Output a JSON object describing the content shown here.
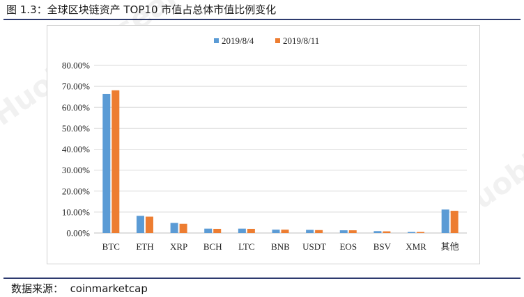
{
  "figure": {
    "title": "图 1.3：全球区块链资产 TOP10 市值占总体市值比例变化",
    "source_label": "数据来源：",
    "source_value": "coinmarketcap",
    "watermark": "Huobi Research"
  },
  "chart_data": {
    "type": "bar",
    "title": "",
    "xlabel": "",
    "ylabel": "",
    "categories": [
      "BTC",
      "ETH",
      "XRP",
      "BCH",
      "LTC",
      "BNB",
      "USDT",
      "EOS",
      "BSV",
      "XMR",
      "其他"
    ],
    "series": [
      {
        "name": "2019/8/4",
        "color": "#5b9bd5",
        "values": [
          66.4,
          8.2,
          4.8,
          2.1,
          2.1,
          1.6,
          1.5,
          1.3,
          0.9,
          0.5,
          11.2
        ]
      },
      {
        "name": "2019/8/11",
        "color": "#ed7d31",
        "values": [
          68.1,
          7.8,
          4.4,
          2.0,
          2.0,
          1.6,
          1.4,
          1.3,
          0.8,
          0.5,
          10.6
        ]
      }
    ],
    "ylim": [
      0,
      80
    ],
    "y_ticks": [
      "0.00%",
      "10.00%",
      "20.00%",
      "30.00%",
      "40.00%",
      "50.00%",
      "60.00%",
      "70.00%",
      "80.00%"
    ],
    "grid": true,
    "legend_position": "top-center"
  }
}
